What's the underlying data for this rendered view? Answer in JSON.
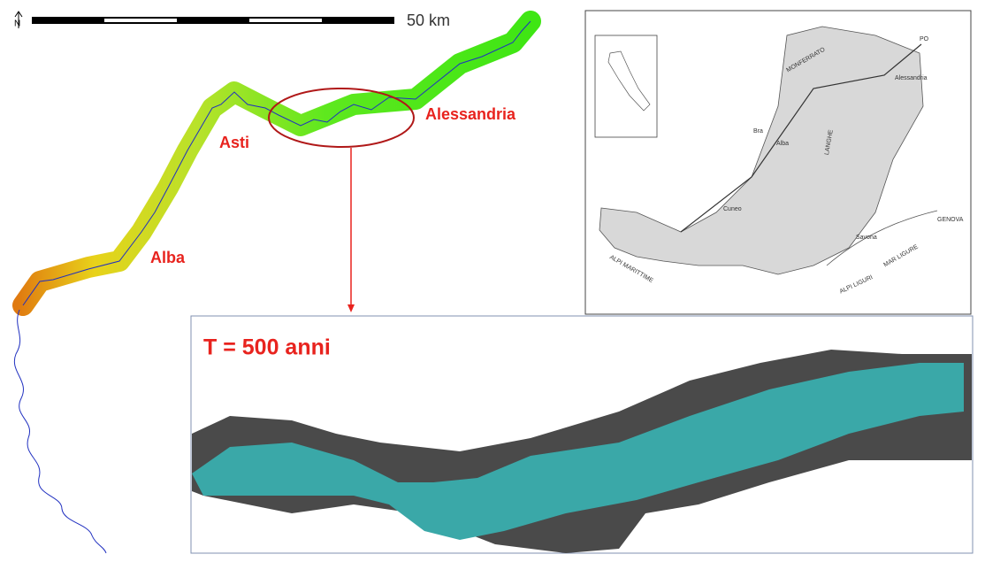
{
  "scale_bar": {
    "label": "50 km"
  },
  "north": "N",
  "cities": [
    "Asti",
    "Alba",
    "Alessandria"
  ],
  "inset_map": {
    "labels": [
      "MONFERRATO",
      "LANGHE",
      "ALPI MARITTIME",
      "ALPI LIGURI",
      "MAR LIGURE",
      "GENOVA",
      "Savona",
      "Cuneo",
      "Alessandria",
      "Alba",
      "Bra",
      "PO"
    ]
  },
  "flood_map": {
    "title": "T = 500 anni"
  }
}
